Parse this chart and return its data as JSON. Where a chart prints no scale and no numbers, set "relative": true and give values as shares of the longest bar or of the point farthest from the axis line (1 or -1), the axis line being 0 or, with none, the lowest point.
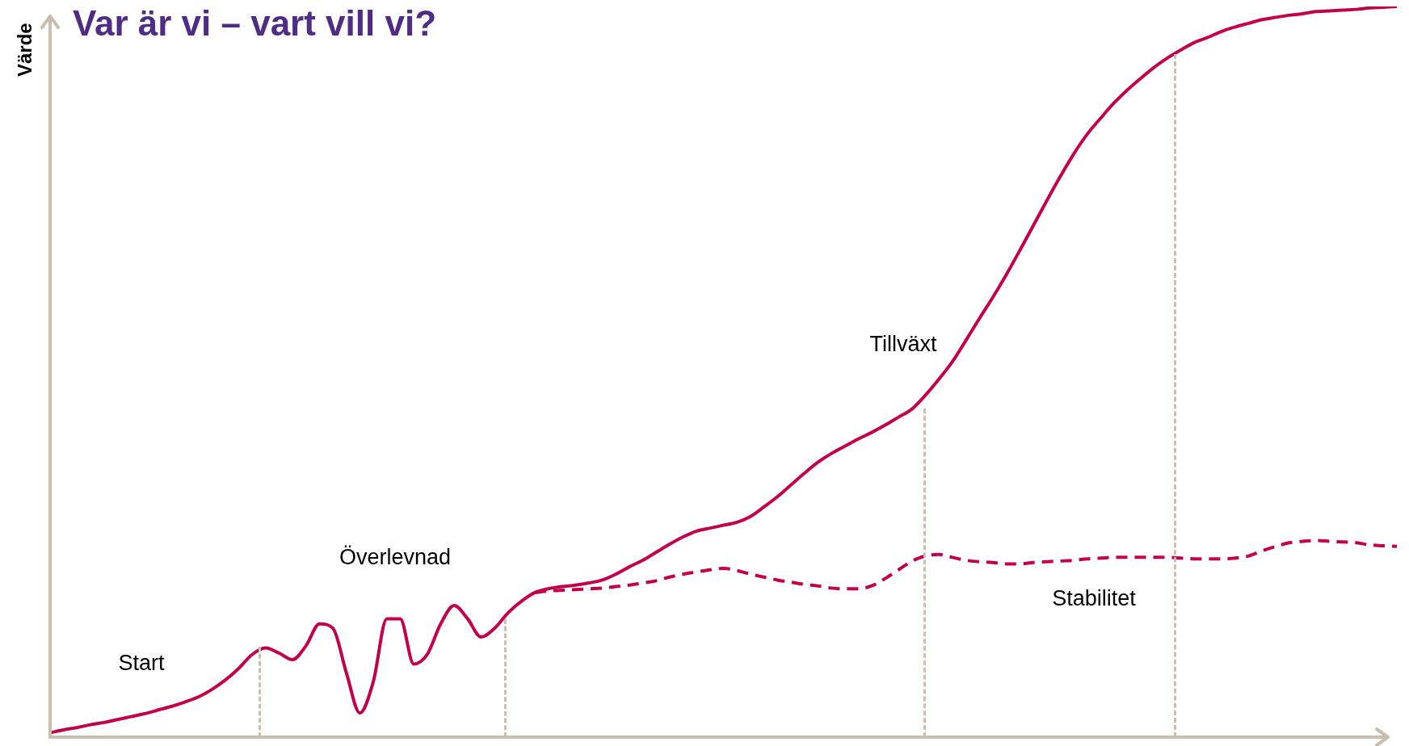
{
  "chart_data": {
    "type": "line",
    "title": "Var är vi – vart vill vi?",
    "ylabel": "Värde",
    "relative": true,
    "legend": false,
    "grid": false,
    "marker": "none",
    "categories": [
      null,
      null,
      null,
      null,
      null,
      null,
      null,
      null,
      null,
      null,
      null,
      null,
      null,
      null,
      null,
      null,
      null,
      null,
      null,
      null,
      null,
      null,
      null,
      null,
      null,
      null,
      null,
      null,
      null,
      null,
      null,
      null,
      null,
      null,
      null,
      null,
      null,
      null,
      null,
      null,
      null,
      null,
      null,
      null,
      null,
      null,
      null,
      null,
      null,
      null,
      null,
      null,
      null,
      null,
      null,
      null,
      null,
      null,
      null,
      null,
      null,
      null,
      null,
      null,
      null,
      null,
      null,
      null,
      null,
      null,
      null,
      null,
      null,
      null,
      null,
      null,
      null,
      null,
      null,
      null,
      null,
      null,
      null,
      null,
      null,
      null,
      null,
      null,
      null,
      null,
      null,
      null,
      null,
      null,
      null,
      null,
      null,
      null,
      null,
      null,
      null
    ],
    "series": [
      {
        "color": "#c3004a",
        "line_style": "solid",
        "values": [
          0.006,
          0.01,
          0.013,
          0.017,
          0.02,
          0.024,
          0.028,
          0.032,
          0.037,
          0.042,
          0.048,
          0.055,
          0.065,
          0.078,
          0.094,
          0.113,
          0.122,
          0.115,
          0.106,
          0.125,
          0.155,
          0.149,
          0.088,
          0.033,
          0.076,
          0.162,
          0.162,
          0.1,
          0.113,
          0.155,
          0.18,
          0.162,
          0.137,
          0.149,
          0.17,
          0.186,
          0.198,
          0.203,
          0.206,
          0.208,
          0.211,
          0.215,
          0.223,
          0.233,
          0.242,
          0.253,
          0.264,
          0.274,
          0.282,
          0.286,
          0.29,
          0.294,
          0.302,
          0.315,
          0.329,
          0.345,
          0.361,
          0.376,
          0.388,
          0.398,
          0.408,
          0.417,
          0.427,
          0.438,
          0.449,
          0.468,
          0.49,
          0.514,
          0.543,
          0.573,
          0.602,
          0.633,
          0.666,
          0.7,
          0.734,
          0.767,
          0.798,
          0.825,
          0.847,
          0.868,
          0.886,
          0.902,
          0.917,
          0.93,
          0.941,
          0.951,
          0.958,
          0.966,
          0.972,
          0.977,
          0.982,
          0.985,
          0.988,
          0.99,
          0.993,
          0.994,
          0.995,
          0.996,
          0.998,
          0.999,
          1.0
        ]
      },
      {
        "color": "#c3004a",
        "line_style": "dashed",
        "values": [
          null,
          null,
          null,
          null,
          null,
          null,
          null,
          null,
          null,
          null,
          null,
          null,
          null,
          null,
          null,
          null,
          null,
          null,
          null,
          null,
          null,
          null,
          null,
          null,
          null,
          null,
          null,
          null,
          null,
          null,
          null,
          null,
          null,
          null,
          null,
          null,
          0.198,
          0.2,
          0.201,
          0.202,
          0.203,
          0.204,
          0.206,
          0.208,
          0.211,
          0.214,
          0.219,
          0.223,
          0.226,
          0.229,
          0.231,
          0.228,
          0.223,
          0.219,
          0.215,
          0.212,
          0.209,
          0.207,
          0.204,
          0.203,
          0.203,
          0.207,
          0.217,
          0.229,
          0.241,
          0.248,
          0.25,
          0.246,
          0.242,
          0.24,
          0.239,
          0.237,
          0.237,
          0.239,
          0.24,
          0.241,
          0.242,
          0.244,
          0.245,
          0.246,
          0.246,
          0.246,
          0.246,
          0.246,
          0.245,
          0.244,
          0.244,
          0.244,
          0.245,
          0.248,
          0.255,
          0.261,
          0.266,
          0.268,
          0.269,
          0.268,
          0.267,
          0.266,
          0.263,
          0.262,
          0.261
        ]
      }
    ],
    "annotations": [
      "Start",
      "Överlevnad",
      "Tillväxt",
      "Stabilitet"
    ]
  }
}
